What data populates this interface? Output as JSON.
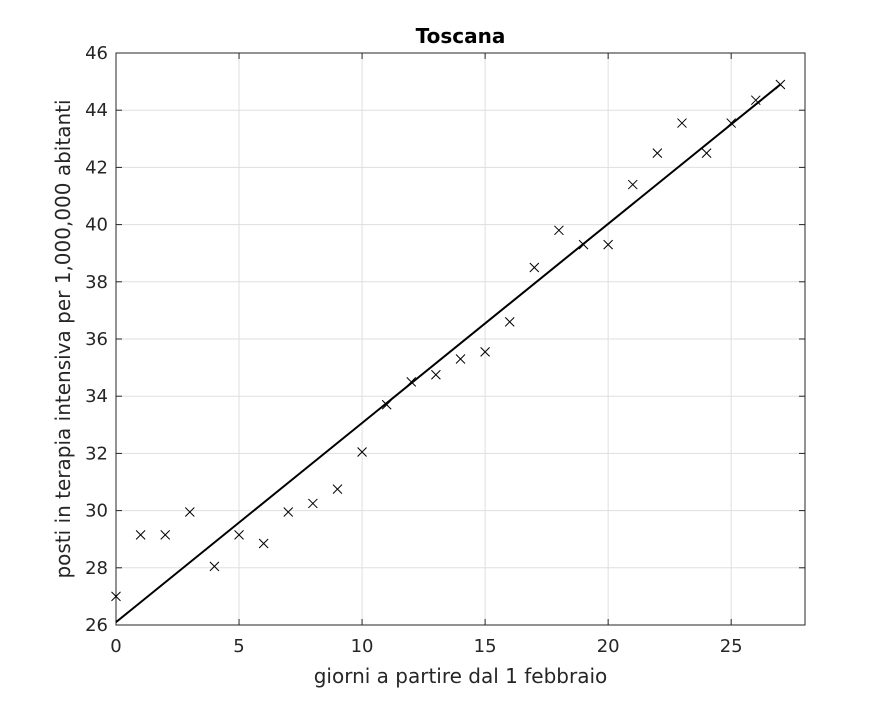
{
  "chart_data": {
    "type": "scatter",
    "title": "Toscana",
    "xlabel": "giorni a partire dal 1 febbraio",
    "ylabel": "posti in terapia intensiva per 1,000,000 abitanti",
    "xlim": [
      0,
      28
    ],
    "ylim": [
      26,
      46
    ],
    "xticks": [
      0,
      5,
      10,
      15,
      20,
      25
    ],
    "yticks": [
      26,
      28,
      30,
      32,
      34,
      36,
      38,
      40,
      42,
      44,
      46
    ],
    "grid": true,
    "series": [
      {
        "marker": "x",
        "color": "#000000",
        "x": [
          0,
          1,
          2,
          3,
          4,
          5,
          6,
          7,
          8,
          9,
          10,
          11,
          12,
          13,
          14,
          15,
          16,
          17,
          18,
          19,
          20,
          21,
          22,
          23,
          24,
          25,
          26,
          27
        ],
        "y": [
          27.0,
          29.15,
          29.15,
          29.95,
          28.05,
          29.15,
          28.85,
          29.95,
          30.25,
          30.75,
          32.05,
          33.7,
          34.5,
          34.75,
          35.3,
          35.55,
          36.6,
          38.5,
          39.8,
          39.3,
          39.3,
          41.4,
          42.5,
          43.55,
          42.5,
          43.55,
          44.35,
          44.9
        ]
      }
    ],
    "fit_line": {
      "color": "#000000",
      "x": [
        0,
        27
      ],
      "y": [
        26.1,
        44.9
      ]
    }
  }
}
